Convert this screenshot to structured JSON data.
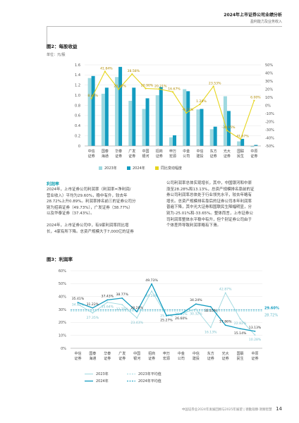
{
  "header": {
    "title": "2024年上市证券公司业绩分析",
    "subtitle": "盈利能力及业务收入"
  },
  "figure2": {
    "label": "图2：每股收益",
    "unit": "单位：元/股"
  },
  "section": {
    "title": "利润率",
    "left_paragraphs": [
      [
        "2024年，上市证券公司利润率（利润率=净利润/",
        "营业收入）平均为29.60%，稳中有升，较去年",
        "28.72%上升0.89%。利润率排名前三的证券公司分",
        "别为招商证券（49.73%），广发证券（38.77%）",
        "以及华泰证券（37.43%）。"
      ],
      [
        "2024年，上市证券公司中，有9家利润率同比增",
        "长，4家有所下降。总资产规模大于7,000亿的证券"
      ]
    ],
    "right_paragraphs": [
      [
        "公司利润率总体实现增长，其中，中国银河和中原",
        "涨至28.28%和13.13%，总资产规模排名靠前的证",
        "券公司利润率总体处于行业领先水平，较去年略有",
        "增长。总资产规模排名靠后的证券公司本年利润率",
        "普遍下降，其中光大证券和国联民生降幅明显，分",
        "别为-25.01%和-33.65%。整体而言，上市证券公",
        "司利润率整体水平稳中有升，但个别证券公司由于",
        "个体差异导致利润率略有下滑。"
      ]
    ]
  },
  "figure3": {
    "label": "图3：利润率"
  },
  "footer": {
    "text": "中国证券业2024年发展回顾与2025年展望 | 德勤观察·洞察智慧",
    "page": "14"
  },
  "chart_data": [
    {
      "type": "bar",
      "categories": [
        "中信证券",
        "国泰海通",
        "华泰证券",
        "广发证券",
        "中国银河",
        "招商证券",
        "申万宏源",
        "中金公司",
        "中信建投",
        "东方证券",
        "光大证券",
        "国联民生",
        "中原证券"
      ],
      "series": [
        {
          "name": "2023年",
          "values": [
            1.34,
            1.03,
            1.36,
            0.89,
            0.73,
            1.0,
            0.17,
            1.12,
            0.72,
            0.33,
            0.98,
            0.09,
            -0.02
          ]
        },
        {
          "name": "2024年",
          "values": [
            1.38,
            1.15,
            1.56,
            1.15,
            0.94,
            1.16,
            0.21,
            1.08,
            0.73,
            0.38,
            0.69,
            0.14,
            0.02
          ]
        },
        {
          "name": "同比变动幅度",
          "type": "line",
          "values": [
            8.46,
            41.84,
            20.0,
            38.58,
            20.9,
            20.21,
            16.67,
            -9.21,
            1.28,
            23.53,
            -30.95,
            -41.67,
            6.0
          ]
        }
      ],
      "data_labels": [
        "8.46%",
        "41.84%",
        "20.00%",
        "38.58%",
        "20.90%",
        "20.21%",
        "16.67%",
        "-9.21%",
        "1.28%",
        "23.53%",
        "-30.95%",
        "-41.67%",
        "6.00%"
      ],
      "left_ticks": [
        "1.6",
        "1.4",
        "1.2",
        "1.0",
        "0.8",
        "0.6",
        "0.4",
        "0.2",
        "0"
      ],
      "right_ticks": [
        "50%",
        "40%",
        "30%",
        "20%",
        "10%",
        "0%",
        "-10%",
        "-20%",
        "-30%",
        "-40%",
        "-50%"
      ],
      "ylim": [
        0,
        1.6
      ],
      "y2lim": [
        -50,
        50
      ],
      "colors": {
        "2023年": "#9fd9e0",
        "2024年": "#139cc0",
        "同比变动幅度": "#e6d51e"
      }
    },
    {
      "type": "line",
      "categories": [
        "中信证券",
        "国泰海通",
        "华泰证券",
        "广发证券",
        "中国银河",
        "招商证券",
        "申万宏源",
        "中金公司",
        "中信建投",
        "东方证券",
        "光大证券",
        "国联民生",
        "中原证券"
      ],
      "series": [
        {
          "name": "2023年",
          "values": [
            34.11,
            27.35,
            35.64,
            33.75,
            23.43,
            44.24,
            25.47,
            26.81,
            30.32,
            16.13,
            42.87,
            22.82,
            10.28
          ]
        },
        {
          "name": "2024年",
          "values": [
            35.41,
            31.22,
            37.43,
            38.77,
            28.28,
            49.73,
            25.27,
            26.6,
            34.24,
            32.15,
            17.86,
            15.14,
            13.13
          ]
        },
        {
          "name": "2023年平均值",
          "values": [
            28.72,
            28.72,
            28.72,
            28.72,
            28.72,
            28.72,
            28.72,
            28.72,
            28.72,
            28.72,
            28.72,
            28.72,
            28.72
          ]
        },
        {
          "name": "2024年平均值",
          "values": [
            29.6,
            29.6,
            29.6,
            29.6,
            29.6,
            29.6,
            29.6,
            29.6,
            29.6,
            29.6,
            29.6,
            29.6,
            29.6
          ]
        }
      ],
      "labels_2023": [
        "34.11%",
        "27.35%",
        "35.64%",
        "33.75%",
        "23.43%",
        "44.24%",
        "25.47%",
        "26.81%",
        "30.32%",
        "16.13%",
        "42.87%",
        "22.82%",
        "10.28%"
      ],
      "labels_2024": [
        "35.41%",
        "31.22%",
        "37.43%",
        "38.77%",
        "28.28%",
        "49.73%",
        "25.27%",
        "26.60%",
        "34.24%",
        "32.15%",
        "17.86%",
        "15.14%",
        "13.13%"
      ],
      "avg_labels": {
        "2024年平均值": "29.60%",
        "2023年平均值": "28.72%"
      },
      "y_ticks": [
        "60%",
        "50%",
        "40%",
        "30%",
        "20%",
        "10%",
        "0%"
      ],
      "ylim": [
        0,
        60
      ],
      "colors": {
        "2023年": "#9fd9e0",
        "2024年": "#139cc0"
      }
    }
  ]
}
